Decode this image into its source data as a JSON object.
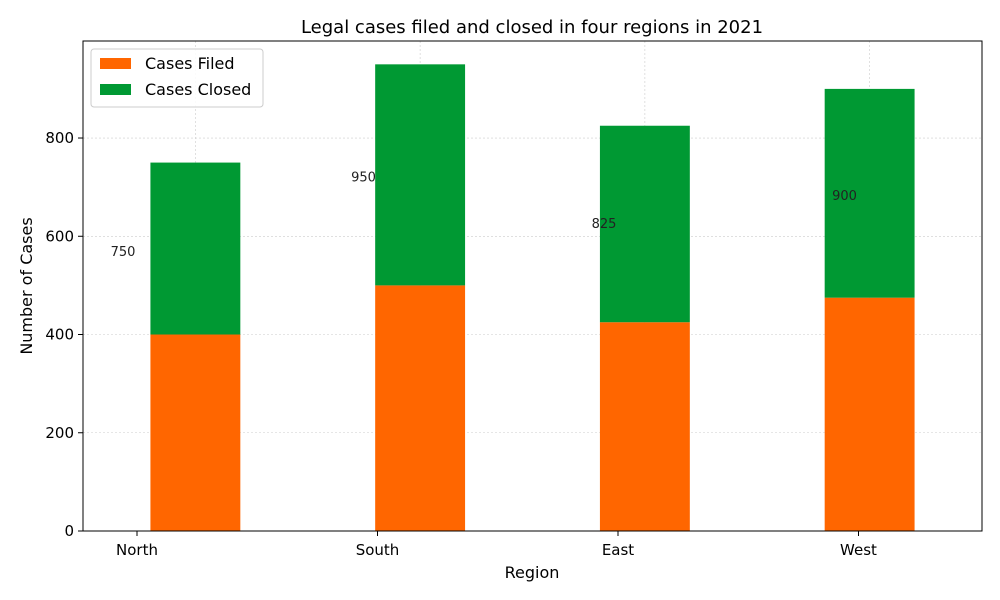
{
  "chart_data": {
    "type": "bar",
    "stacked": true,
    "title": "Legal cases filed and closed in four regions in 2021",
    "xlabel": "Region",
    "ylabel": "Number of Cases",
    "categories": [
      "North",
      "South",
      "East",
      "West"
    ],
    "series": [
      {
        "name": "Cases Filed",
        "values": [
          400,
          500,
          425,
          475
        ],
        "color": "#ff6600"
      },
      {
        "name": "Cases Closed",
        "values": [
          350,
          450,
          400,
          425
        ],
        "color": "#009933"
      }
    ],
    "totals": [
      "750",
      "950",
      "825",
      "900"
    ],
    "ylim": [
      0,
      997.5
    ],
    "yticks": [
      0,
      200,
      400,
      600,
      800
    ],
    "grid": true,
    "legend_position": "top-left"
  }
}
